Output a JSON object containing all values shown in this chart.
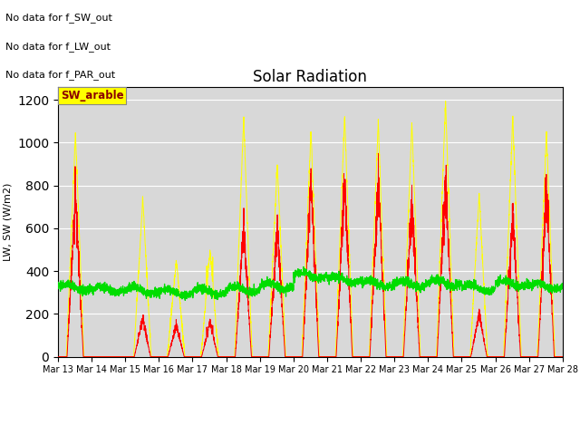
{
  "title": "Solar Radiation",
  "ylabel": "LW, SW (W/m2)",
  "ylim": [
    0,
    1260
  ],
  "yticks": [
    0,
    200,
    400,
    600,
    800,
    1000,
    1200
  ],
  "background_color": "#d8d8d8",
  "annotations": [
    "No data for f_SW_out",
    "No data for f_LW_out",
    "No data for f_PAR_out"
  ],
  "legend_label": "SW_arable",
  "sw_color": "red",
  "lw_color": "#00dd00",
  "par_color": "yellow",
  "start_day": 13,
  "end_day": 28,
  "n_days": 15,
  "par_peaks": [
    1050,
    0,
    740,
    450,
    500,
    1120,
    900,
    1060,
    1130,
    1100,
    1090,
    1200,
    760,
    1120,
    1050
  ],
  "sw_peaks": [
    780,
    0,
    180,
    150,
    160,
    620,
    610,
    840,
    820,
    820,
    730,
    830,
    200,
    670,
    780
  ],
  "lw_base": [
    325,
    315,
    310,
    300,
    305,
    315,
    330,
    380,
    360,
    340,
    340,
    345,
    320,
    340,
    330
  ],
  "points_per_day": 288
}
